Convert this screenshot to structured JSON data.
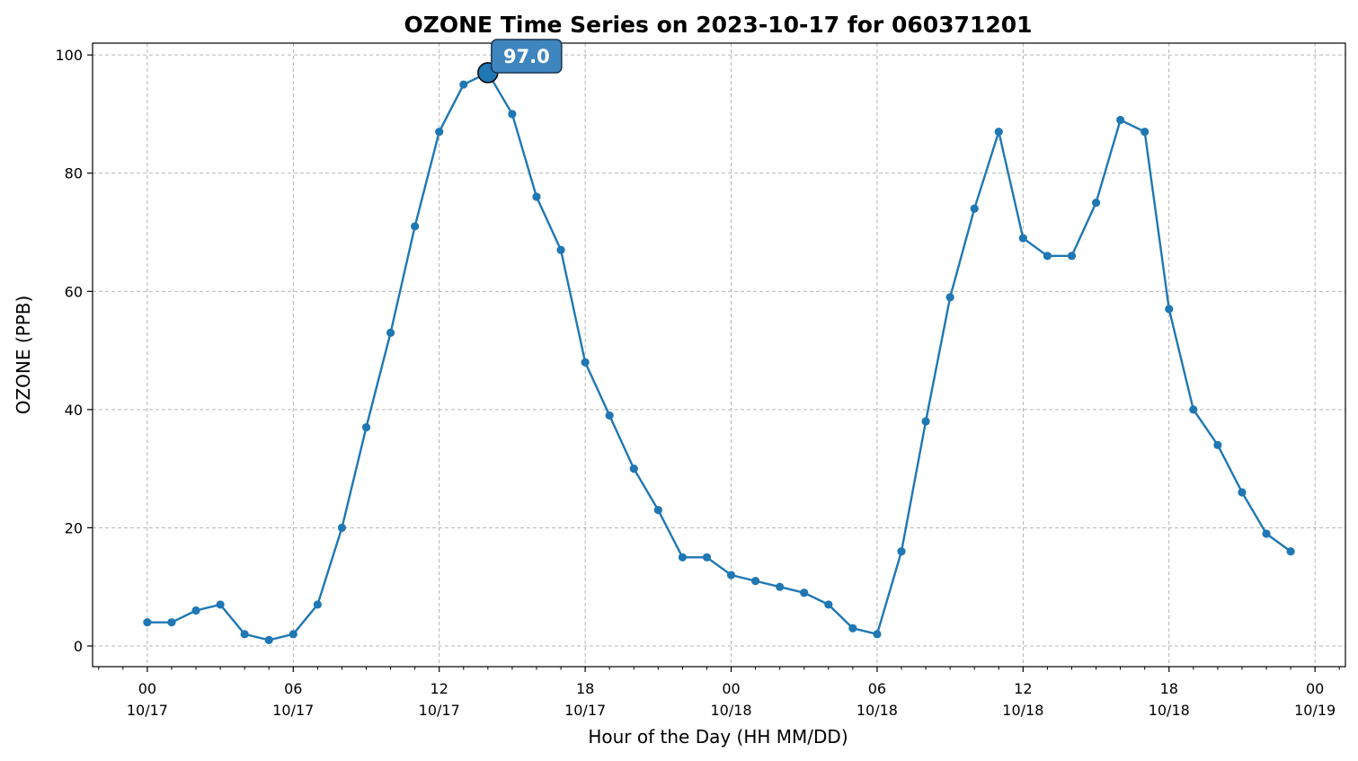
{
  "chart_data": {
    "type": "line",
    "title": "OZONE Time Series on 2023-10-17 for 060371201",
    "xlabel": "Hour of the Day (HH MM/DD)",
    "ylabel": "OZONE (PPB)",
    "ylim": [
      -3.5,
      102
    ],
    "xlim": [
      -2.25,
      49.25
    ],
    "yticks": [
      0,
      20,
      40,
      60,
      80,
      100
    ],
    "xticks": [
      {
        "x": 0,
        "hour": "00",
        "date": "10/17"
      },
      {
        "x": 6,
        "hour": "06",
        "date": "10/17"
      },
      {
        "x": 12,
        "hour": "12",
        "date": "10/17"
      },
      {
        "x": 18,
        "hour": "18",
        "date": "10/17"
      },
      {
        "x": 24,
        "hour": "00",
        "date": "10/18"
      },
      {
        "x": 30,
        "hour": "06",
        "date": "10/18"
      },
      {
        "x": 36,
        "hour": "12",
        "date": "10/18"
      },
      {
        "x": 42,
        "hour": "18",
        "date": "10/18"
      },
      {
        "x": 48,
        "hour": "00",
        "date": "10/19"
      }
    ],
    "grid": true,
    "color": "#1f77b4",
    "x": [
      0,
      1,
      2,
      3,
      4,
      5,
      6,
      7,
      8,
      9,
      10,
      11,
      12,
      13,
      14,
      15,
      16,
      17,
      18,
      19,
      20,
      21,
      22,
      23,
      24,
      25,
      26,
      27,
      28,
      29,
      30,
      31,
      32,
      33,
      34,
      35,
      36,
      37,
      38,
      39,
      40,
      41,
      42,
      43,
      44,
      45,
      46,
      47
    ],
    "values": [
      4,
      4,
      6,
      7,
      2,
      1,
      2,
      7,
      20,
      37,
      53,
      71,
      87,
      95,
      97,
      90,
      76,
      67,
      48,
      39,
      30,
      23,
      15,
      15,
      12,
      11,
      10,
      9,
      7,
      3,
      2,
      16,
      38,
      59,
      74,
      87,
      69,
      66,
      66,
      75,
      89,
      87,
      57,
      40,
      34,
      26,
      19,
      16
    ],
    "annotation": {
      "x": 14,
      "y": 97,
      "label": "97.0"
    }
  }
}
